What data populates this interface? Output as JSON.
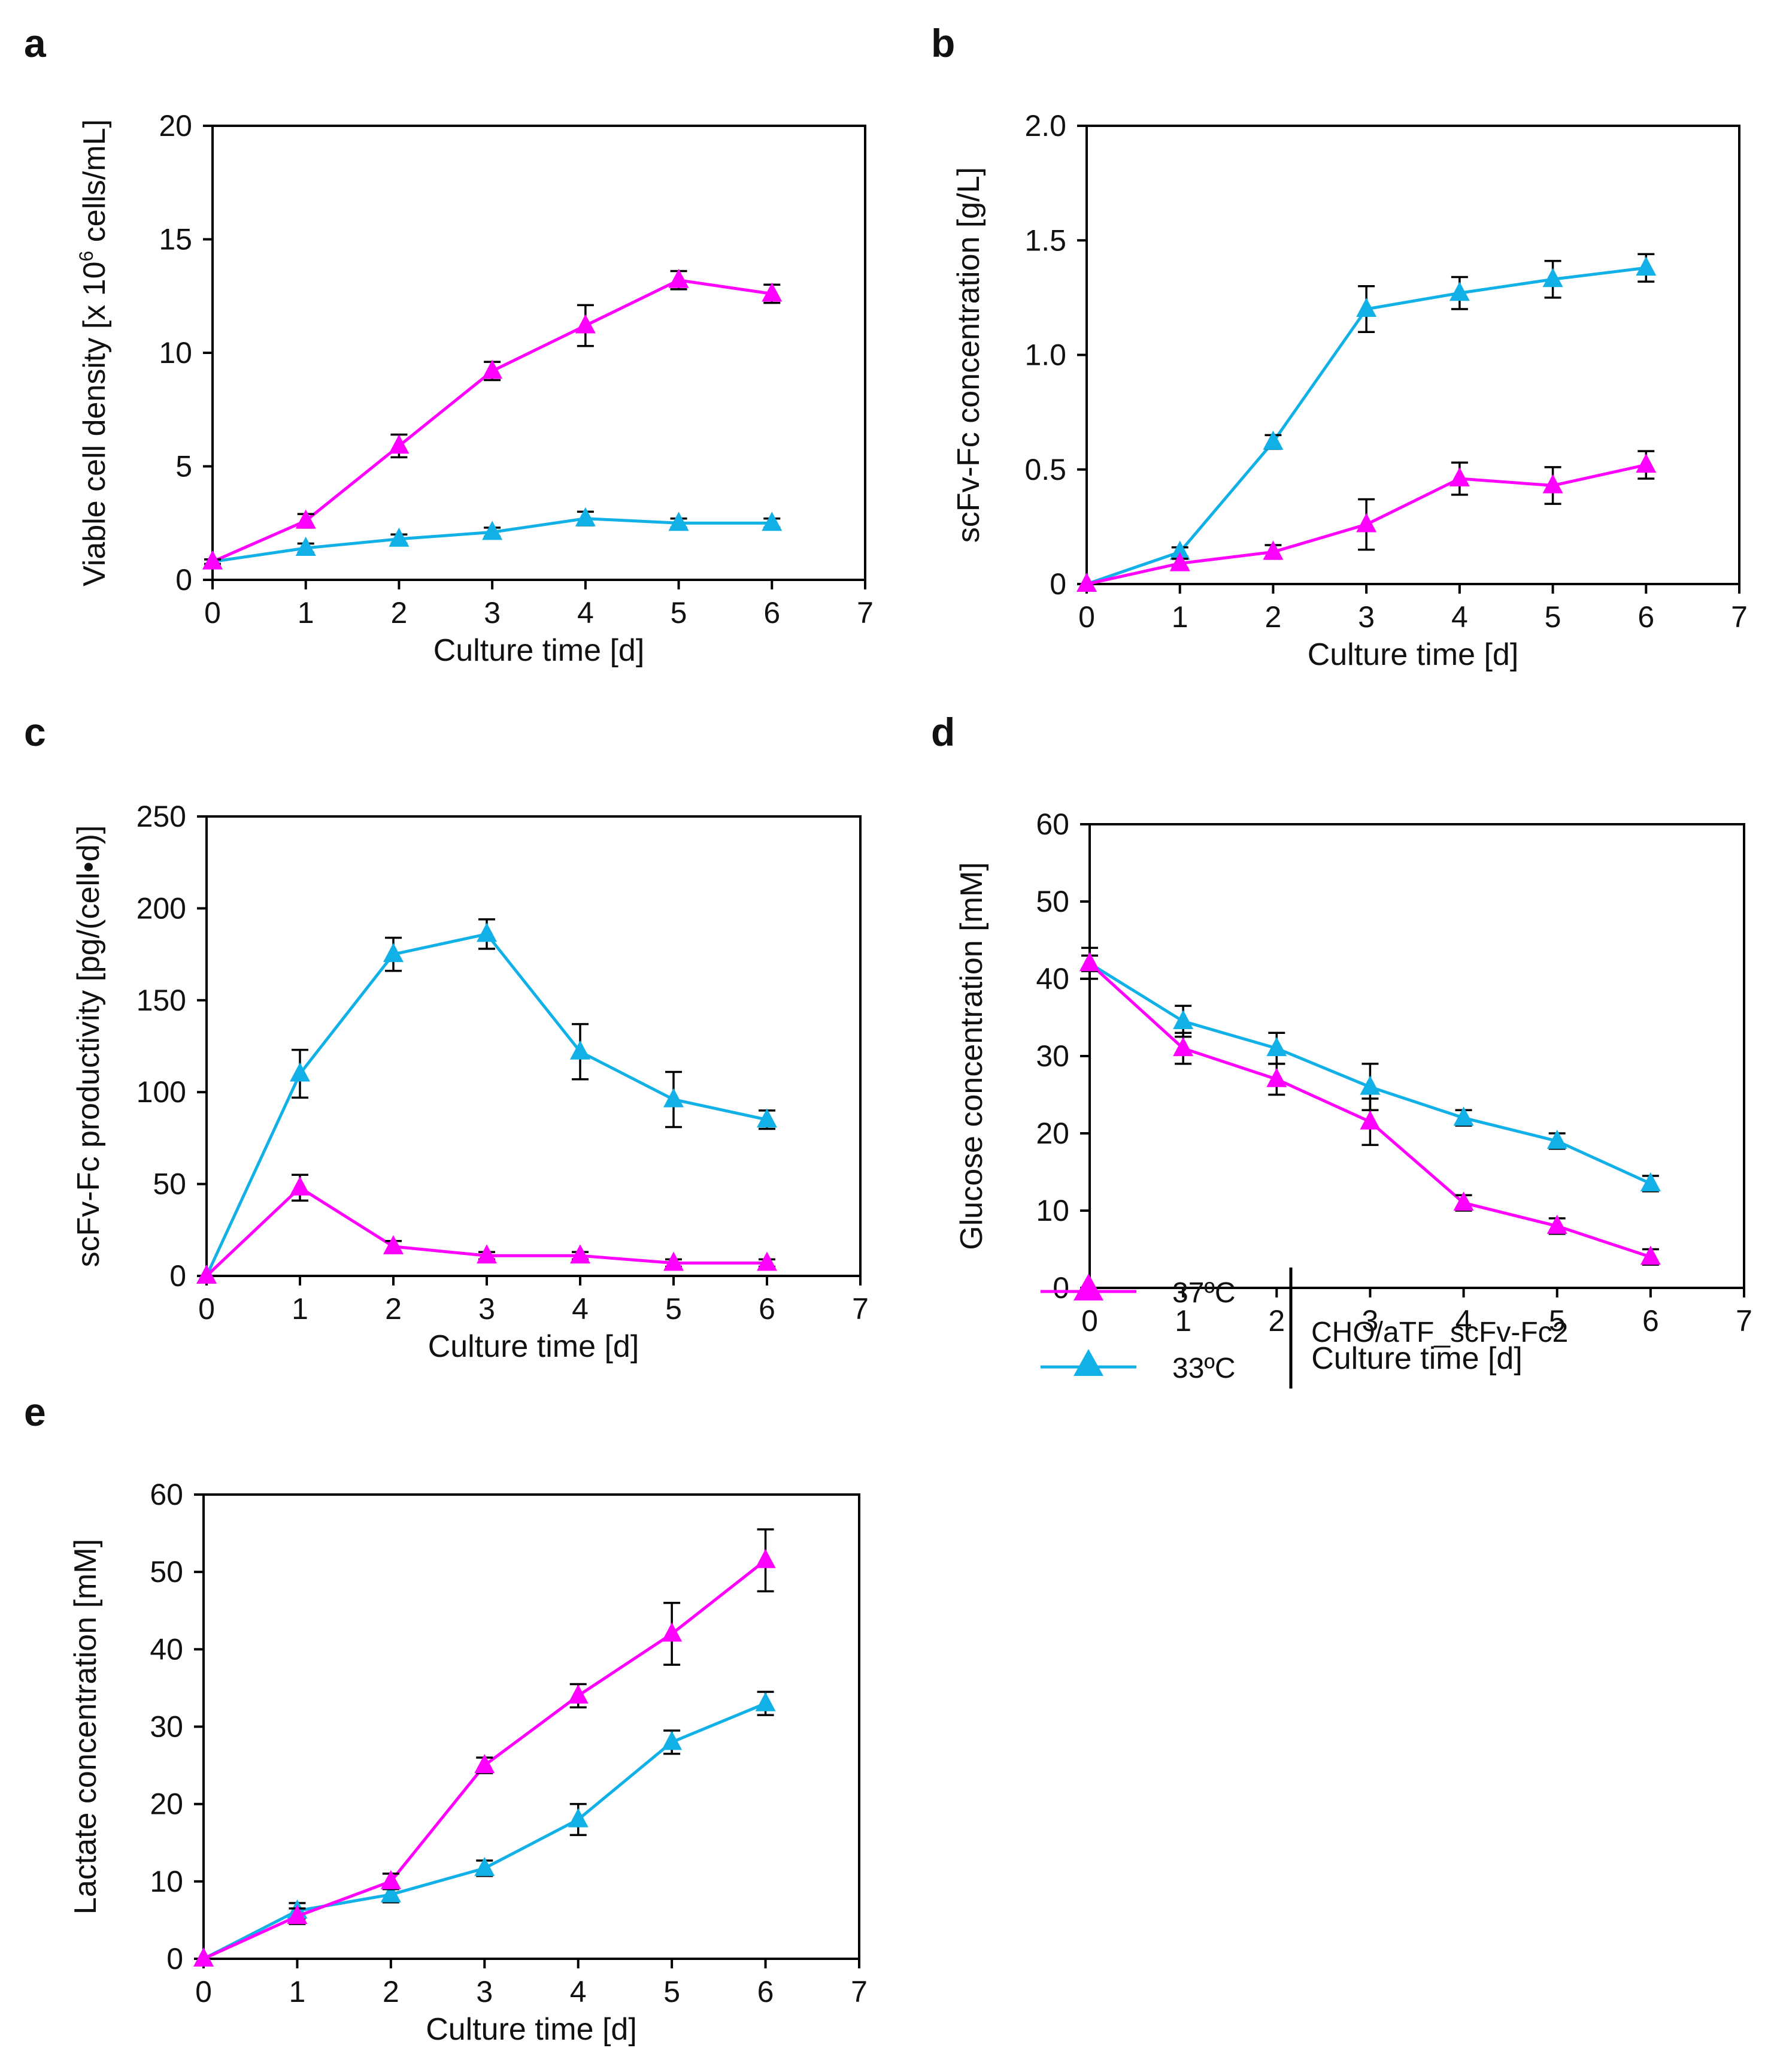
{
  "colors": {
    "s37": "#ff00ff",
    "s33": "#11b0e6",
    "axis": "#000000"
  },
  "legend": {
    "labels": [
      "37ºC",
      "33ºC"
    ],
    "group_label": "CHO/aTF_scFv-Fc2"
  },
  "chart_data": [
    {
      "panel": "a",
      "type": "line",
      "xlabel": "Culture time [d]",
      "ylabel_parts": [
        "Viable cell density [x 10",
        "6",
        " cells/mL]"
      ],
      "xlim": [
        0,
        7
      ],
      "ylim": [
        0,
        20
      ],
      "xticks": [
        "0",
        "1",
        "2",
        "3",
        "4",
        "5",
        "6",
        "7"
      ],
      "yticks": [
        "0",
        "5",
        "10",
        "15",
        "20"
      ],
      "x": [
        0,
        1,
        2,
        3,
        4,
        5,
        6
      ],
      "series": [
        {
          "name": "37ºC",
          "values": [
            0.8,
            2.6,
            5.9,
            9.2,
            11.2,
            13.2,
            12.6
          ],
          "errors": [
            0.1,
            0.3,
            0.5,
            0.4,
            0.9,
            0.4,
            0.4
          ]
        },
        {
          "name": "33ºC",
          "values": [
            0.8,
            1.4,
            1.8,
            2.1,
            2.7,
            2.5,
            2.5
          ],
          "errors": [
            0.1,
            0.2,
            0.2,
            0.2,
            0.3,
            0.2,
            0.2
          ]
        }
      ]
    },
    {
      "panel": "b",
      "type": "line",
      "xlabel": "Culture time [d]",
      "ylabel_parts": [
        "scFv-Fc concentration [g/L]"
      ],
      "xlim": [
        0,
        7
      ],
      "ylim": [
        0,
        2.0
      ],
      "xticks": [
        "0",
        "1",
        "2",
        "3",
        "4",
        "5",
        "6",
        "7"
      ],
      "yticks": [
        "0",
        "0.5",
        "1.0",
        "1.5",
        "2.0"
      ],
      "x": [
        0,
        1,
        2,
        3,
        4,
        5,
        6
      ],
      "series": [
        {
          "name": "37ºC",
          "values": [
            0,
            0.09,
            0.14,
            0.26,
            0.46,
            0.43,
            0.52
          ],
          "errors": [
            0,
            0.02,
            0.03,
            0.11,
            0.07,
            0.08,
            0.06
          ]
        },
        {
          "name": "33ºC",
          "values": [
            0,
            0.14,
            0.62,
            1.2,
            1.27,
            1.33,
            1.38
          ],
          "errors": [
            0,
            0.02,
            0.03,
            0.1,
            0.07,
            0.08,
            0.06
          ]
        }
      ]
    },
    {
      "panel": "c",
      "type": "line",
      "xlabel": "Culture time [d]",
      "ylabel_parts": [
        "scFv-Fc productivity [pg/(cell•d)]"
      ],
      "xlim": [
        0,
        7
      ],
      "ylim": [
        0,
        250
      ],
      "xticks": [
        "0",
        "1",
        "2",
        "3",
        "4",
        "5",
        "6",
        "7"
      ],
      "yticks": [
        "0",
        "50",
        "100",
        "150",
        "200",
        "250"
      ],
      "x": [
        0,
        1,
        2,
        3,
        4,
        5,
        6
      ],
      "series": [
        {
          "name": "37ºC",
          "values": [
            0,
            48,
            16,
            11,
            11,
            7,
            7
          ],
          "errors": [
            0,
            7,
            3,
            2,
            2,
            2,
            2
          ]
        },
        {
          "name": "33ºC",
          "values": [
            0,
            110,
            175,
            186,
            122,
            96,
            85
          ],
          "errors": [
            0,
            13,
            9,
            8,
            15,
            15,
            5
          ]
        }
      ]
    },
    {
      "panel": "d",
      "type": "line",
      "xlabel": "Culture time [d]",
      "ylabel_parts": [
        "Glucose concentration [mM]"
      ],
      "xlim": [
        0,
        7
      ],
      "ylim": [
        0,
        60
      ],
      "xticks": [
        "0",
        "1",
        "2",
        "3",
        "4",
        "5",
        "6",
        "7"
      ],
      "yticks": [
        "0",
        "10",
        "20",
        "30",
        "40",
        "50",
        "60"
      ],
      "x": [
        0,
        1,
        2,
        3,
        4,
        5,
        6
      ],
      "series": [
        {
          "name": "37ºC",
          "values": [
            42,
            31,
            27,
            21.5,
            11,
            8,
            4
          ],
          "errors": [
            1,
            2,
            2,
            3,
            1,
            1,
            1
          ]
        },
        {
          "name": "33ºC",
          "values": [
            42,
            34.5,
            31,
            26,
            22,
            19,
            13.5
          ],
          "errors": [
            2,
            2,
            2,
            3,
            1,
            1,
            1
          ]
        }
      ]
    },
    {
      "panel": "e",
      "type": "line",
      "xlabel": "Culture time [d]",
      "ylabel_parts": [
        "Lactate concentration [mM]"
      ],
      "xlim": [
        0,
        7
      ],
      "ylim": [
        0,
        60
      ],
      "xticks": [
        "0",
        "1",
        "2",
        "3",
        "4",
        "5",
        "6",
        "7"
      ],
      "yticks": [
        "0",
        "10",
        "20",
        "30",
        "40",
        "50",
        "60"
      ],
      "x": [
        0,
        1,
        2,
        3,
        4,
        5,
        6
      ],
      "series": [
        {
          "name": "37ºC",
          "values": [
            0,
            5.5,
            10,
            25,
            34,
            42,
            51.5
          ],
          "errors": [
            0,
            1,
            1,
            1,
            1.5,
            4,
            4
          ]
        },
        {
          "name": "33ºC",
          "values": [
            0,
            6.2,
            8.3,
            11.7,
            18,
            28,
            33
          ],
          "errors": [
            0,
            1,
            1,
            1,
            2,
            1.5,
            1.5
          ]
        }
      ]
    }
  ]
}
